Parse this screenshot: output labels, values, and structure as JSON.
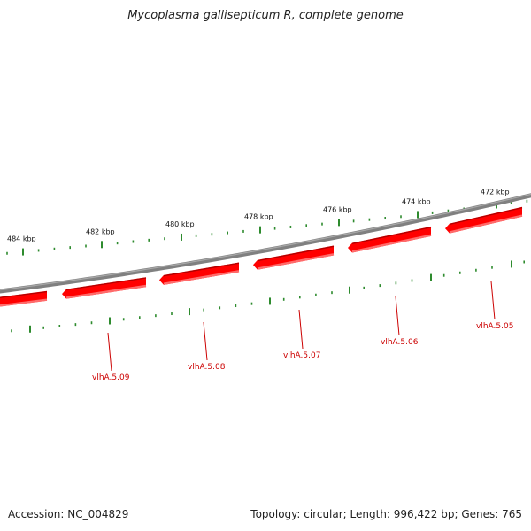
{
  "header": {
    "title": "Mycoplasma gallisepticum R, complete genome"
  },
  "footer": {
    "accession": "Accession: NC_004829",
    "stats": "Topology: circular; Length: 996,422 bp; Genes: 765"
  },
  "genome": {
    "topology": "circular",
    "length_bp": 996422,
    "gene_count": 765
  },
  "ruler": {
    "labels": [
      "484 kbp",
      "482 kbp",
      "480 kbp",
      "478 kbp",
      "476 kbp",
      "474 kbp",
      "472 kbp"
    ],
    "color": "#2e8b2e"
  },
  "genes": {
    "color": "#ff0000",
    "label_color": "#cc0000",
    "strand": "reverse",
    "labels": [
      "vlhA.5.09",
      "vlhA.5.08",
      "vlhA.5.07",
      "vlhA.5.06",
      "vlhA.5.05"
    ]
  },
  "backbone": {
    "color": "#808080"
  }
}
